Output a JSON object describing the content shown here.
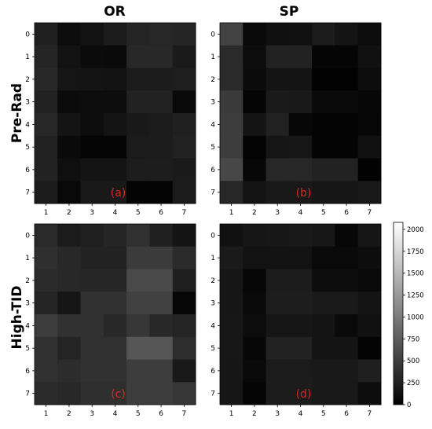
{
  "figure": {
    "col_titles": [
      "OR",
      "SP"
    ],
    "row_titles": [
      "Pre-Rad",
      "High-TID"
    ]
  },
  "colors": {
    "panel_label": "#d42a1e",
    "text": "#000000"
  },
  "chart_data": [
    {
      "type": "heatmap",
      "panel_label": "(a)",
      "column": "OR",
      "row": "Pre-Rad",
      "x": [
        "1",
        "2",
        "3",
        "4",
        "5",
        "6",
        "7"
      ],
      "y": [
        "0",
        "1",
        "2",
        "3",
        "4",
        "5",
        "6",
        "7"
      ],
      "values": [
        [
          260,
          100,
          150,
          220,
          300,
          320,
          300
        ],
        [
          300,
          150,
          90,
          80,
          330,
          330,
          210
        ],
        [
          330,
          170,
          160,
          150,
          230,
          230,
          250
        ],
        [
          280,
          90,
          110,
          110,
          280,
          280,
          70
        ],
        [
          320,
          160,
          110,
          160,
          200,
          230,
          260
        ],
        [
          280,
          80,
          40,
          40,
          220,
          230,
          280
        ],
        [
          280,
          120,
          160,
          160,
          240,
          240,
          210
        ],
        [
          230,
          70,
          200,
          200,
          30,
          30,
          220
        ]
      ]
    },
    {
      "type": "heatmap",
      "panel_label": "(b)",
      "column": "SP",
      "row": "Pre-Rad",
      "x": [
        "1",
        "2",
        "3",
        "4",
        "5",
        "6",
        "7"
      ],
      "y": [
        "0",
        "1",
        "2",
        "3",
        "4",
        "5",
        "6",
        "7"
      ],
      "values": [
        [
          540,
          70,
          120,
          140,
          220,
          160,
          100
        ],
        [
          340,
          100,
          280,
          280,
          40,
          40,
          140
        ],
        [
          340,
          90,
          160,
          160,
          20,
          20,
          110
        ],
        [
          470,
          40,
          210,
          200,
          80,
          80,
          60
        ],
        [
          500,
          160,
          270,
          60,
          30,
          30,
          50
        ],
        [
          500,
          30,
          180,
          190,
          30,
          30,
          140
        ],
        [
          580,
          50,
          320,
          320,
          280,
          280,
          20
        ],
        [
          320,
          160,
          200,
          200,
          180,
          180,
          200
        ]
      ]
    },
    {
      "type": "heatmap",
      "panel_label": "(c)",
      "column": "OR",
      "row": "High-TID",
      "x": [
        "1",
        "2",
        "3",
        "4",
        "5",
        "6",
        "7"
      ],
      "y": [
        "0",
        "1",
        "2",
        "3",
        "4",
        "5",
        "6",
        "7"
      ],
      "values": [
        [
          340,
          220,
          260,
          300,
          390,
          260,
          160
        ],
        [
          380,
          330,
          280,
          280,
          480,
          480,
          350
        ],
        [
          350,
          330,
          310,
          310,
          600,
          600,
          250
        ],
        [
          300,
          180,
          400,
          400,
          530,
          530,
          50
        ],
        [
          500,
          400,
          400,
          330,
          450,
          330,
          290
        ],
        [
          400,
          290,
          390,
          390,
          700,
          700,
          370
        ],
        [
          400,
          360,
          400,
          400,
          500,
          500,
          200
        ],
        [
          350,
          330,
          380,
          380,
          500,
          500,
          440
        ]
      ]
    },
    {
      "type": "heatmap",
      "panel_label": "(d)",
      "column": "SP",
      "row": "High-TID",
      "x": [
        "1",
        "2",
        "3",
        "4",
        "5",
        "6",
        "7"
      ],
      "y": [
        "0",
        "1",
        "2",
        "3",
        "4",
        "5",
        "6",
        "7"
      ],
      "values": [
        [
          140,
          180,
          190,
          200,
          190,
          60,
          180
        ],
        [
          210,
          150,
          150,
          150,
          70,
          70,
          110
        ],
        [
          180,
          50,
          230,
          230,
          100,
          100,
          70
        ],
        [
          180,
          70,
          240,
          240,
          210,
          210,
          160
        ],
        [
          190,
          100,
          180,
          180,
          160,
          80,
          140
        ],
        [
          190,
          60,
          280,
          280,
          160,
          160,
          30
        ],
        [
          180,
          70,
          220,
          220,
          200,
          200,
          250
        ],
        [
          180,
          40,
          230,
          230,
          200,
          200,
          110
        ]
      ]
    }
  ],
  "colorbar": {
    "min": 0,
    "max": 2080,
    "ticks": [
      0,
      250,
      500,
      750,
      1000,
      1250,
      1500,
      1750,
      2000
    ],
    "colormap": "gray"
  }
}
